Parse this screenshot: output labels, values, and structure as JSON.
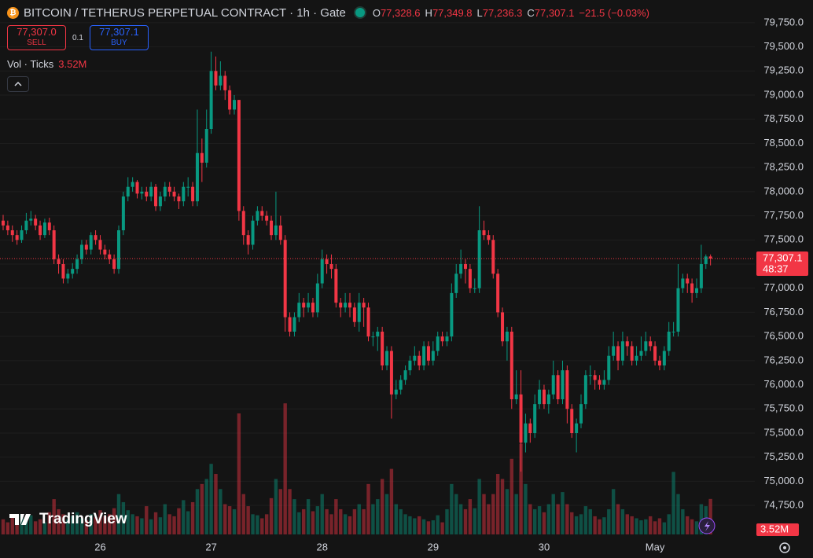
{
  "header": {
    "title": "BITCOIN / TETHERUS PERPETUAL CONTRACT · 1h · Gate",
    "ohlc": [
      {
        "key": "O",
        "value": "77,328.6"
      },
      {
        "key": "H",
        "value": "77,349.8"
      },
      {
        "key": "L",
        "value": "77,236.3"
      },
      {
        "key": "C",
        "value": "77,307.1"
      }
    ],
    "change": "−21.5 (−0.03%)"
  },
  "trade": {
    "sell_price": "77,307.0",
    "sell": "SELL",
    "qty": "0.1",
    "buy_price": "77,307.1",
    "buy": "BUY"
  },
  "indicator": {
    "name": "Vol · Ticks",
    "value": "3.52M"
  },
  "last_price": {
    "price": "77,307.1",
    "countdown": "48:37"
  },
  "volume_label": "3.52M",
  "brand": "TradingView",
  "chart_data": {
    "type": "candlestick",
    "categories": [
      null,
      null,
      null,
      null,
      null,
      null,
      null,
      null,
      null,
      null,
      null,
      null,
      null,
      null,
      null,
      null,
      null,
      null,
      null,
      null,
      null,
      "26",
      null,
      null,
      null,
      null,
      null,
      null,
      null,
      null,
      null,
      null,
      null,
      null,
      null,
      null,
      null,
      null,
      null,
      null,
      null,
      null,
      null,
      null,
      null,
      "27",
      null,
      null,
      null,
      null,
      null,
      null,
      null,
      null,
      null,
      null,
      null,
      null,
      null,
      null,
      null,
      null,
      null,
      null,
      null,
      null,
      null,
      null,
      null,
      "28",
      null,
      null,
      null,
      null,
      null,
      null,
      null,
      null,
      null,
      null,
      null,
      null,
      null,
      null,
      null,
      null,
      null,
      null,
      null,
      null,
      null,
      null,
      null,
      "29",
      null,
      null,
      null,
      null,
      null,
      null,
      null,
      null,
      null,
      null,
      null,
      null,
      null,
      null,
      null,
      null,
      null,
      null,
      null,
      null,
      null,
      null,
      null,
      "30",
      null,
      null,
      null,
      null,
      null,
      null,
      null,
      null,
      null,
      null,
      null,
      null,
      null,
      null,
      null,
      null,
      null,
      null,
      null,
      null,
      null,
      null,
      null,
      "May",
      null,
      null,
      null,
      null,
      null,
      null,
      null,
      null,
      null,
      null,
      null,
      null
    ],
    "open": [
      77700,
      77650,
      77600,
      77550,
      77500,
      77600,
      77700,
      77720,
      77650,
      77550,
      77680,
      77600,
      77300,
      77250,
      77100,
      77150,
      77200,
      77300,
      77450,
      77400,
      77550,
      77500,
      77400,
      77350,
      77300,
      77200,
      77600,
      77950,
      78050,
      78100,
      77980,
      78000,
      77950,
      78050,
      77850,
      77950,
      78050,
      78000,
      77950,
      77900,
      78050,
      78050,
      77900,
      78400,
      78300,
      78650,
      79250,
      79100,
      79200,
      79050,
      78850,
      78950,
      77800,
      77550,
      77450,
      77700,
      77800,
      77750,
      77700,
      77550,
      77650,
      77500,
      76700,
      76550,
      76700,
      76850,
      76800,
      76850,
      76750,
      77050,
      77300,
      77250,
      77200,
      76850,
      76800,
      76850,
      76800,
      76650,
      76850,
      76800,
      76500,
      76500,
      76550,
      76200,
      76350,
      75900,
      75950,
      76050,
      76150,
      76250,
      76300,
      76200,
      76400,
      76250,
      76350,
      76500,
      76450,
      76500,
      76950,
      77150,
      77250,
      77200,
      77000,
      77000,
      77600,
      77550,
      77500,
      77150,
      76750,
      76450,
      76550,
      75850,
      75900,
      75400,
      75600,
      75500,
      75800,
      75950,
      75800,
      75900,
      76100,
      75850,
      76150,
      75750,
      75500,
      75600,
      75800,
      76100,
      76100,
      76050,
      76000,
      76050,
      76300,
      76400,
      76250,
      76450,
      76400,
      76250,
      76300,
      76350,
      76450,
      76400,
      76250,
      76200,
      76350,
      76550,
      76550,
      77000,
      77100,
      77050,
      76950,
      77000,
      77250,
      77328.6
    ],
    "high": [
      77760,
      77700,
      77650,
      77600,
      77650,
      77780,
      77800,
      77760,
      77700,
      77720,
      77730,
      77650,
      77350,
      77300,
      77200,
      77260,
      77350,
      77500,
      77500,
      77580,
      77600,
      77550,
      77450,
      77400,
      77350,
      77650,
      78000,
      78150,
      78150,
      78120,
      78050,
      78050,
      78100,
      78080,
      78000,
      78100,
      78100,
      78050,
      77980,
      78100,
      78150,
      78100,
      78850,
      78550,
      78850,
      79450,
      79400,
      79350,
      79250,
      79100,
      79000,
      78950,
      77850,
      77600,
      77750,
      77850,
      77850,
      77800,
      77750,
      78000,
      77750,
      77550,
      76750,
      76750,
      76950,
      76900,
      76950,
      76900,
      77150,
      77400,
      77350,
      77350,
      77250,
      76900,
      76950,
      76950,
      76850,
      76950,
      76900,
      76850,
      76550,
      76600,
      76600,
      76400,
      76400,
      76050,
      76100,
      76200,
      76300,
      76400,
      76350,
      76450,
      76450,
      76450,
      76550,
      76550,
      76550,
      77050,
      77250,
      77400,
      77300,
      77250,
      77100,
      77850,
      77700,
      77600,
      77550,
      77200,
      76800,
      76600,
      76600,
      76150,
      76150,
      75700,
      75650,
      75900,
      76050,
      76000,
      75950,
      76250,
      76150,
      76250,
      76200,
      75800,
      75650,
      75900,
      76150,
      76200,
      76150,
      76100,
      76150,
      76400,
      76550,
      76450,
      76550,
      76500,
      76450,
      76400,
      76500,
      76550,
      76500,
      76450,
      76300,
      76400,
      76650,
      76650,
      77250,
      77150,
      77150,
      77100,
      77100,
      77450,
      77350,
      77349.8
    ],
    "low": [
      77600,
      77550,
      77480,
      77450,
      77470,
      77560,
      77650,
      77600,
      77500,
      77520,
      77550,
      77250,
      77150,
      77050,
      77050,
      77100,
      77150,
      77250,
      77350,
      77350,
      77450,
      77350,
      77300,
      77250,
      77150,
      77150,
      77550,
      77900,
      78000,
      77930,
      77920,
      77900,
      77900,
      77800,
      77800,
      77900,
      77950,
      77900,
      77820,
      77850,
      77950,
      77850,
      77850,
      78100,
      78250,
      78600,
      79050,
      79050,
      78950,
      78800,
      78800,
      77700,
      77450,
      77350,
      77400,
      77650,
      77700,
      77650,
      77500,
      77500,
      77450,
      76550,
      76500,
      76500,
      76650,
      76700,
      76750,
      76700,
      76700,
      77000,
      77150,
      77100,
      76800,
      76700,
      76750,
      76700,
      76600,
      76550,
      76600,
      76450,
      76400,
      76350,
      76150,
      76150,
      75650,
      75850,
      75900,
      76000,
      76100,
      76200,
      76150,
      76150,
      76200,
      76200,
      76300,
      76400,
      76400,
      76450,
      76900,
      77100,
      77050,
      76950,
      76950,
      76950,
      77500,
      77450,
      77100,
      76700,
      76400,
      76250,
      75750,
      75800,
      75100,
      75300,
      75400,
      75450,
      75750,
      75750,
      75700,
      75850,
      75800,
      75800,
      75600,
      75450,
      75300,
      75550,
      75750,
      76000,
      75950,
      75950,
      75950,
      76000,
      76250,
      76150,
      76200,
      76300,
      76200,
      76200,
      76250,
      76300,
      76350,
      76200,
      76150,
      76150,
      76300,
      76500,
      76500,
      76950,
      76950,
      76850,
      76900,
      76950,
      77200,
      77236.3
    ],
    "close": [
      77650,
      77600,
      77550,
      77500,
      77600,
      77700,
      77720,
      77650,
      77550,
      77680,
      77600,
      77300,
      77250,
      77100,
      77150,
      77200,
      77300,
      77450,
      77400,
      77550,
      77500,
      77400,
      77350,
      77300,
      77200,
      77600,
      77950,
      78050,
      78100,
      77980,
      78000,
      77950,
      78050,
      77850,
      77950,
      78050,
      78000,
      77950,
      77900,
      78050,
      78050,
      77900,
      78400,
      78300,
      78650,
      79250,
      79100,
      79200,
      79050,
      78850,
      78950,
      77800,
      77550,
      77450,
      77700,
      77800,
      77750,
      77700,
      77550,
      77650,
      77500,
      76700,
      76550,
      76700,
      76850,
      76800,
      76850,
      76750,
      77050,
      77300,
      77250,
      77200,
      76850,
      76800,
      76850,
      76800,
      76650,
      76850,
      76800,
      76500,
      76500,
      76550,
      76200,
      76350,
      75900,
      75950,
      76050,
      76150,
      76250,
      76300,
      76200,
      76400,
      76250,
      76350,
      76500,
      76450,
      76500,
      76950,
      77150,
      77250,
      77200,
      77000,
      77000,
      77600,
      77550,
      77500,
      77150,
      76750,
      76450,
      76550,
      75850,
      75900,
      75400,
      75600,
      75500,
      75800,
      75950,
      75800,
      75900,
      76100,
      75850,
      76150,
      75750,
      75500,
      75600,
      75800,
      76100,
      76100,
      76050,
      76000,
      76050,
      76300,
      76400,
      76250,
      76450,
      76400,
      76250,
      76300,
      76350,
      76450,
      76400,
      76250,
      76200,
      76350,
      76550,
      76550,
      77000,
      77100,
      77050,
      76950,
      77000,
      77250,
      77328.6,
      77307.1
    ],
    "volume": [
      1.5,
      1.2,
      1.8,
      1.4,
      2.0,
      1.6,
      1.9,
      1.3,
      1.5,
      1.2,
      2.2,
      3.5,
      2.5,
      2.0,
      1.5,
      1.8,
      2.2,
      1.6,
      1.4,
      2.0,
      1.7,
      2.4,
      1.8,
      2.0,
      2.6,
      4.0,
      3.2,
      2.4,
      2.0,
      1.8,
      1.6,
      2.8,
      1.5,
      2.2,
      1.7,
      3.0,
      2.0,
      1.8,
      2.6,
      3.4,
      2.3,
      3.2,
      4.5,
      5.0,
      5.5,
      7.0,
      6.0,
      4.5,
      3.0,
      2.8,
      2.5,
      12.0,
      4.0,
      2.8,
      2.0,
      1.9,
      1.6,
      2.0,
      3.6,
      5.5,
      4.5,
      13.0,
      4.5,
      3.5,
      2.2,
      2.5,
      3.5,
      2.3,
      2.8,
      4.0,
      2.5,
      2.0,
      3.5,
      2.5,
      2.0,
      1.8,
      2.5,
      3.0,
      2.5,
      5.0,
      3.0,
      3.5,
      5.5,
      4.0,
      6.5,
      3.0,
      2.5,
      2.0,
      1.8,
      1.6,
      1.8,
      1.5,
      1.3,
      1.4,
      1.9,
      1.2,
      2.5,
      5.0,
      4.0,
      3.0,
      2.5,
      3.5,
      2.6,
      5.5,
      4.0,
      3.0,
      4.0,
      6.0,
      5.5,
      4.5,
      7.5,
      4.0,
      9.0,
      5.0,
      3.0,
      2.5,
      2.8,
      2.2,
      3.0,
      4.0,
      3.0,
      4.2,
      3.0,
      2.2,
      1.8,
      2.0,
      2.8,
      2.5,
      1.8,
      1.5,
      1.7,
      2.5,
      4.5,
      3.0,
      2.5,
      2.0,
      1.8,
      1.6,
      1.4,
      1.5,
      1.8,
      1.3,
      1.6,
      1.2,
      2.0,
      6.2,
      4.0,
      2.5,
      1.8,
      1.5,
      1.3,
      3.0,
      2.8,
      3.52
    ],
    "ylim": [
      74450,
      79985
    ],
    "yticks": [
      {
        "value": 74750,
        "label": "74,750.0"
      },
      {
        "value": 75000,
        "label": "75,000.0"
      },
      {
        "value": 75250,
        "label": "75,250.0"
      },
      {
        "value": 75500,
        "label": "75,500.0"
      },
      {
        "value": 75750,
        "label": "75,750.0"
      },
      {
        "value": 76000,
        "label": "76,000.0"
      },
      {
        "value": 76250,
        "label": "76,250.0"
      },
      {
        "value": 76500,
        "label": "76,500.0"
      },
      {
        "value": 76750,
        "label": "76,750.0"
      },
      {
        "value": 77000,
        "label": "77,000.0"
      },
      {
        "value": 77250,
        "label": "77,250.0"
      },
      {
        "value": 77500,
        "label": "77,500.0"
      },
      {
        "value": 77750,
        "label": "77,750.0"
      },
      {
        "value": 78000,
        "label": "78,000.0"
      },
      {
        "value": 78250,
        "label": "78,250.0"
      },
      {
        "value": 78500,
        "label": "78,500.0"
      },
      {
        "value": 78750,
        "label": "78,750.0"
      },
      {
        "value": 79000,
        "label": "79,000.0"
      },
      {
        "value": 79250,
        "label": "79,250.0"
      },
      {
        "value": 79500,
        "label": "79,500.0"
      },
      {
        "value": 79750,
        "label": "79,750.0"
      }
    ],
    "volume_ylim": [
      0,
      53
    ],
    "colors": {
      "up": "#089981",
      "down": "#f23645"
    },
    "grid": true
  }
}
